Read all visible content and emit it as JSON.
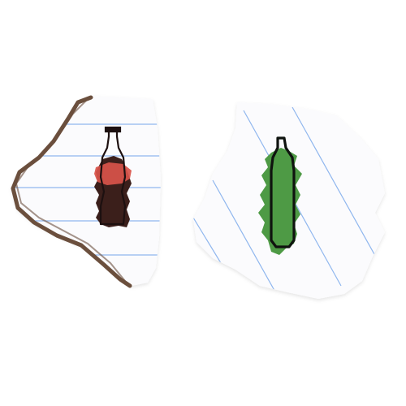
{
  "scene": {
    "background": "#ffffff",
    "paper_color": "#fbfbfd",
    "rule_line_color": "#8fb6ee",
    "torn_edge_color": "#6b4f3d"
  },
  "items": [
    {
      "name": "cola-bottle-drawing",
      "icon": "soda-bottle-icon",
      "colors": {
        "body": "#3b1f1b",
        "label": "#d9544a",
        "outline": "#1d1010"
      }
    },
    {
      "name": "green-bottle-drawing",
      "icon": "water-bottle-icon",
      "colors": {
        "body": "#4e9a45",
        "outline": "#0f130f"
      }
    }
  ]
}
